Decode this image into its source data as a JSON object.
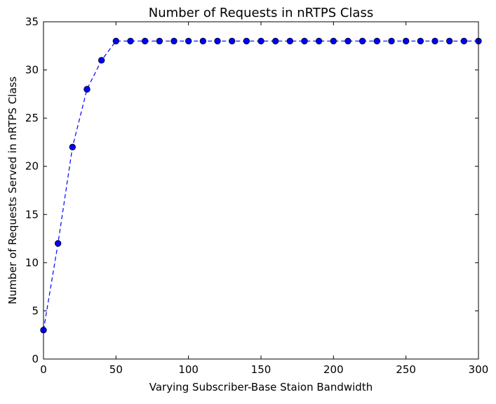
{
  "chart_data": {
    "type": "line",
    "title": "Number of Requests in nRTPS Class",
    "xlabel": "Varying Subscriber-Base Staion Bandwidth",
    "ylabel": "Number of Requests Served in nRTPS Class",
    "xlim": [
      0,
      300
    ],
    "ylim": [
      0,
      35
    ],
    "xticks": [
      0,
      50,
      100,
      150,
      200,
      250,
      300
    ],
    "yticks": [
      0,
      5,
      10,
      15,
      20,
      25,
      30,
      35
    ],
    "xtick_labels": [
      "0",
      "50",
      "100",
      "150",
      "200",
      "250",
      "300"
    ],
    "ytick_labels": [
      "0",
      "5",
      "10",
      "15",
      "20",
      "25",
      "30",
      "35"
    ],
    "grid": false,
    "legend": "none",
    "series": [
      {
        "color": "#0000ff",
        "line_style": "dashed",
        "marker": "circle",
        "x": [
          0,
          10,
          20,
          30,
          40,
          50,
          60,
          70,
          80,
          90,
          100,
          110,
          120,
          130,
          140,
          150,
          160,
          170,
          180,
          190,
          200,
          210,
          220,
          230,
          240,
          250,
          260,
          270,
          280,
          290,
          300
        ],
        "y": [
          3,
          12,
          22,
          28,
          31,
          33,
          33,
          33,
          33,
          33,
          33,
          33,
          33,
          33,
          33,
          33,
          33,
          33,
          33,
          33,
          33,
          33,
          33,
          33,
          33,
          33,
          33,
          33,
          33,
          33,
          33
        ]
      }
    ]
  }
}
